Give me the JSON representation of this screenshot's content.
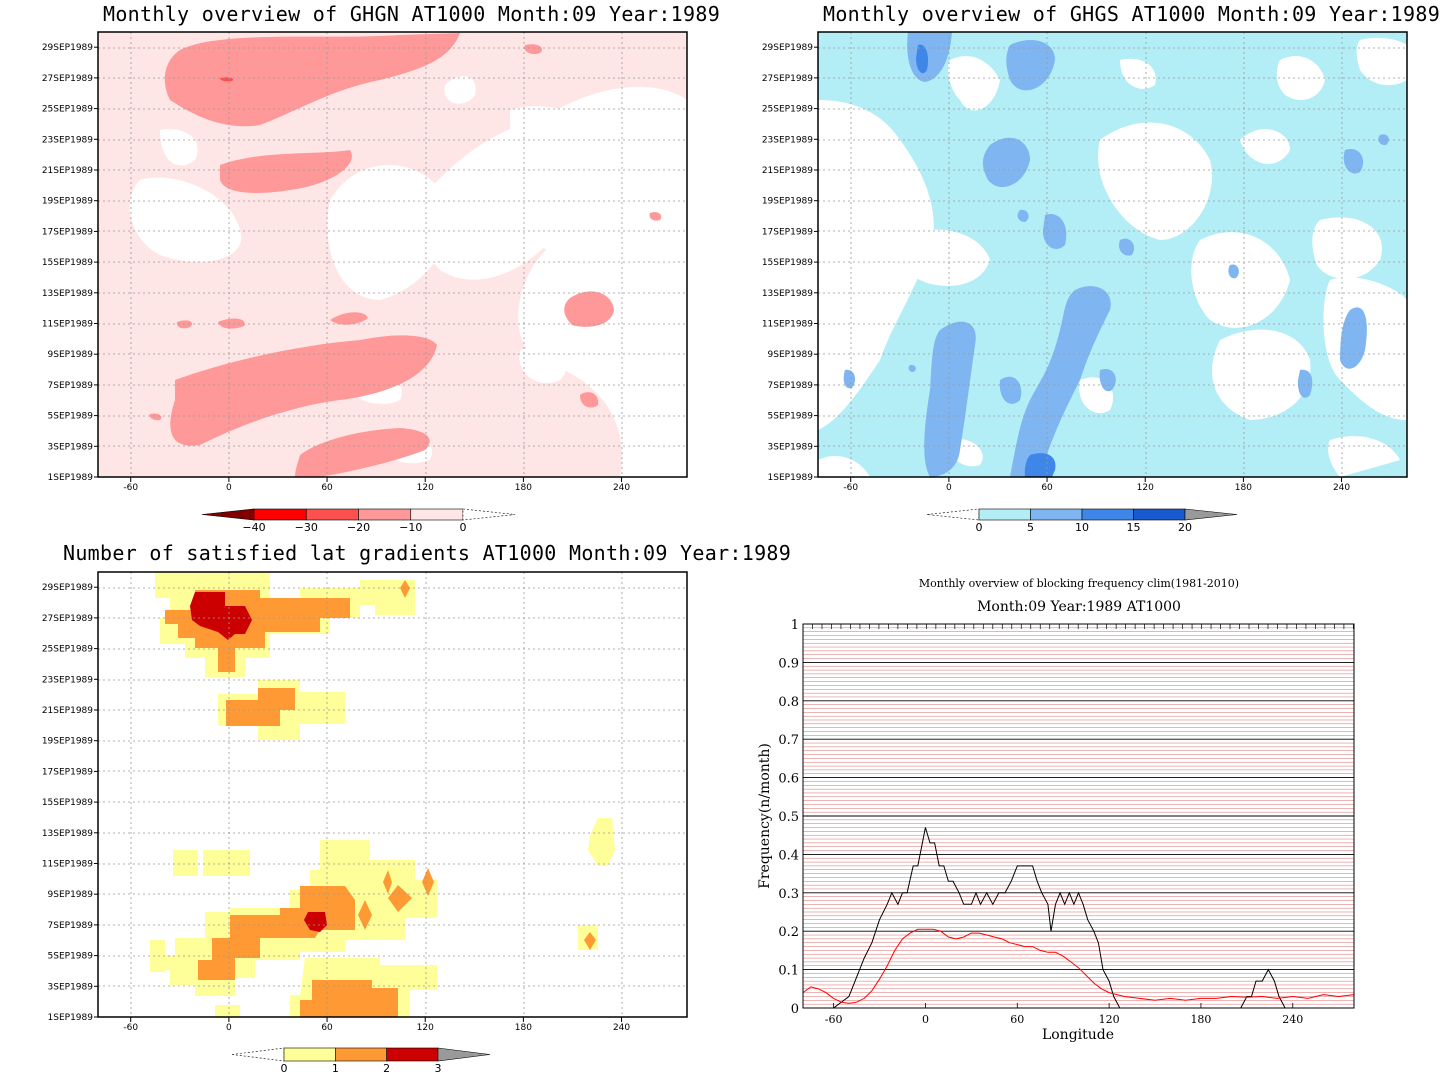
{
  "panels": {
    "ghgn": {
      "title": "Monthly overview of GHGN AT1000 Month:09 Year:1989",
      "colorbar": {
        "labels": [
          "-40",
          "-30",
          "-20",
          "-10",
          "0"
        ],
        "colors": [
          "#ff0000",
          "#ff5050",
          "#ff9999",
          "#ffe6e6"
        ],
        "under": "#800000",
        "over": "#ffffff"
      }
    },
    "ghgs": {
      "title": "Monthly overview of GHGS AT1000 Month:09 Year:1989",
      "colorbar": {
        "labels": [
          "0",
          "5",
          "10",
          "15",
          "20"
        ],
        "colors": [
          "#b3eef7",
          "#7fb6f2",
          "#3e87e8",
          "#1a5ad1"
        ],
        "under": "#ffffff",
        "over": "#999999"
      }
    },
    "lat": {
      "title": "Number of satisfied lat gradients AT1000 Month:09 Year:1989",
      "colorbar": {
        "labels": [
          "0",
          "1",
          "2",
          "3"
        ],
        "colors": [
          "#ffff99",
          "#ff9933",
          "#cc0000"
        ],
        "under": "#ffffff",
        "over": "#999999"
      }
    },
    "freq": {
      "title": "Monthly overview of blocking frequency clim(1981-2010)",
      "subtitle": "Month:09 Year:1989  AT1000"
    }
  },
  "dates": [
    "1SEP1989",
    "3SEP1989",
    "5SEP1989",
    "7SEP1989",
    "9SEP1989",
    "11SEP1989",
    "13SEP1989",
    "15SEP1989",
    "17SEP1989",
    "19SEP1989",
    "21SEP1989",
    "23SEP1989",
    "25SEP1989",
    "27SEP1989",
    "29SEP1989"
  ],
  "lon_ticks": [
    "-60",
    "0",
    "60",
    "120",
    "180",
    "240"
  ],
  "chart_data": [
    {
      "type": "heatmap",
      "title": "Monthly overview of GHGN AT1000 Month:09 Year:1989",
      "x_range": [
        -80,
        280
      ],
      "y_range": [
        "1SEP1989",
        "30SEP1989"
      ],
      "levels": [
        -40,
        -30,
        -20,
        -10,
        0
      ],
      "colors": [
        "#800000",
        "#ff0000",
        "#ff5050",
        "#ff9999",
        "#ffe6e6",
        "#ffffff"
      ],
      "description_values": {
        "dominant_level": "-10 to 0",
        "min_level_reached": "-20 to -10"
      }
    },
    {
      "type": "heatmap",
      "title": "Monthly overview of GHGS AT1000 Month:09 Year:1989",
      "x_range": [
        -80,
        280
      ],
      "y_range": [
        "1SEP1989",
        "30SEP1989"
      ],
      "levels": [
        0,
        5,
        10,
        15,
        20
      ],
      "colors": [
        "#ffffff",
        "#b3eef7",
        "#7fb6f2",
        "#3e87e8",
        "#1a5ad1",
        "#999999"
      ],
      "description_values": {
        "dominant_level": "0 to 5",
        "max_level_reached": "15 to 20"
      }
    },
    {
      "type": "heatmap",
      "title": "Number of satisfied lat gradients AT1000 Month:09 Year:1989",
      "x_range": [
        -80,
        280
      ],
      "y_range": [
        "1SEP1989",
        "30SEP1989"
      ],
      "levels": [
        0,
        1,
        2,
        3
      ],
      "colors": [
        "#ffffff",
        "#ffff99",
        "#ff9933",
        "#cc0000",
        "#999999"
      ]
    },
    {
      "type": "line",
      "title": "Monthly overview of blocking frequency clim(1981-2010)",
      "subtitle": "Month:09 Year:1989  AT1000",
      "xlabel": "Longitude",
      "ylabel": "Frequency(n/month)",
      "xlim": [
        -80,
        280
      ],
      "ylim": [
        0,
        1
      ],
      "x_ticks": [
        -60,
        0,
        60,
        120,
        180,
        240
      ],
      "y_ticks": [
        0,
        0.1,
        0.2,
        0.3,
        0.4,
        0.5,
        0.6,
        0.7,
        0.8,
        0.9,
        1
      ],
      "series": [
        {
          "color": "#000000",
          "points": [
            [
              -80,
              0
            ],
            [
              -60,
              0
            ],
            [
              -50,
              0.03
            ],
            [
              -40,
              0.13
            ],
            [
              -35,
              0.17
            ],
            [
              -30,
              0.23
            ],
            [
              -25,
              0.27
            ],
            [
              -22,
              0.3
            ],
            [
              -18,
              0.27
            ],
            [
              -15,
              0.3
            ],
            [
              -12,
              0.3
            ],
            [
              -8,
              0.37
            ],
            [
              -5,
              0.37
            ],
            [
              -2,
              0.43
            ],
            [
              0,
              0.47
            ],
            [
              3,
              0.43
            ],
            [
              6,
              0.43
            ],
            [
              9,
              0.37
            ],
            [
              12,
              0.37
            ],
            [
              15,
              0.33
            ],
            [
              18,
              0.33
            ],
            [
              22,
              0.3
            ],
            [
              25,
              0.27
            ],
            [
              30,
              0.27
            ],
            [
              33,
              0.3
            ],
            [
              36,
              0.27
            ],
            [
              40,
              0.3
            ],
            [
              44,
              0.27
            ],
            [
              48,
              0.3
            ],
            [
              52,
              0.3
            ],
            [
              56,
              0.33
            ],
            [
              60,
              0.37
            ],
            [
              70,
              0.37
            ],
            [
              73,
              0.33
            ],
            [
              76,
              0.3
            ],
            [
              80,
              0.27
            ],
            [
              82,
              0.2
            ],
            [
              85,
              0.27
            ],
            [
              88,
              0.3
            ],
            [
              91,
              0.27
            ],
            [
              94,
              0.3
            ],
            [
              97,
              0.27
            ],
            [
              100,
              0.3
            ],
            [
              103,
              0.27
            ],
            [
              106,
              0.23
            ],
            [
              110,
              0.2
            ],
            [
              113,
              0.17
            ],
            [
              116,
              0.1
            ],
            [
              120,
              0.07
            ],
            [
              123,
              0.03
            ],
            [
              127,
              0
            ],
            [
              200,
              0
            ],
            [
              206,
              0
            ],
            [
              210,
              0.03
            ],
            [
              213,
              0.03
            ],
            [
              216,
              0.07
            ],
            [
              220,
              0.07
            ],
            [
              224,
              0.1
            ],
            [
              228,
              0.07
            ],
            [
              231,
              0.03
            ],
            [
              235,
              0
            ],
            [
              280,
              0
            ]
          ]
        },
        {
          "color": "#ff0000",
          "points": [
            [
              -80,
              0.04
            ],
            [
              -75,
              0.055
            ],
            [
              -70,
              0.05
            ],
            [
              -65,
              0.04
            ],
            [
              -60,
              0.025
            ],
            [
              -55,
              0.015
            ],
            [
              -50,
              0.012
            ],
            [
              -45,
              0.015
            ],
            [
              -40,
              0.025
            ],
            [
              -35,
              0.045
            ],
            [
              -30,
              0.075
            ],
            [
              -25,
              0.11
            ],
            [
              -20,
              0.15
            ],
            [
              -15,
              0.18
            ],
            [
              -10,
              0.195
            ],
            [
              -5,
              0.205
            ],
            [
              0,
              0.205
            ],
            [
              5,
              0.205
            ],
            [
              10,
              0.2
            ],
            [
              15,
              0.185
            ],
            [
              20,
              0.18
            ],
            [
              25,
              0.185
            ],
            [
              30,
              0.195
            ],
            [
              35,
              0.195
            ],
            [
              40,
              0.19
            ],
            [
              45,
              0.185
            ],
            [
              50,
              0.18
            ],
            [
              55,
              0.17
            ],
            [
              60,
              0.165
            ],
            [
              65,
              0.16
            ],
            [
              70,
              0.16
            ],
            [
              75,
              0.15
            ],
            [
              80,
              0.145
            ],
            [
              85,
              0.145
            ],
            [
              90,
              0.135
            ],
            [
              95,
              0.12
            ],
            [
              100,
              0.105
            ],
            [
              105,
              0.085
            ],
            [
              110,
              0.065
            ],
            [
              115,
              0.05
            ],
            [
              120,
              0.04
            ],
            [
              125,
              0.035
            ],
            [
              130,
              0.03
            ],
            [
              140,
              0.025
            ],
            [
              150,
              0.02
            ],
            [
              160,
              0.025
            ],
            [
              170,
              0.02
            ],
            [
              180,
              0.025
            ],
            [
              190,
              0.025
            ],
            [
              200,
              0.03
            ],
            [
              210,
              0.028
            ],
            [
              220,
              0.03
            ],
            [
              230,
              0.025
            ],
            [
              240,
              0.03
            ],
            [
              250,
              0.025
            ],
            [
              260,
              0.035
            ],
            [
              270,
              0.03
            ],
            [
              280,
              0.035
            ]
          ]
        }
      ]
    }
  ]
}
